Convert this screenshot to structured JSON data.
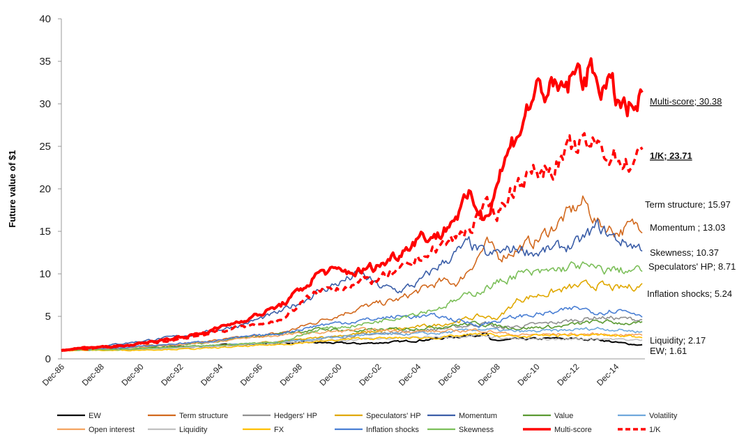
{
  "chart_data": {
    "type": "line",
    "title": "",
    "xlabel": "",
    "ylabel": "Future value of $1",
    "ylim": [
      0,
      40
    ],
    "yticks": [
      0,
      5,
      10,
      15,
      20,
      25,
      30,
      35,
      40
    ],
    "xlim": [
      1986.92,
      2016.3
    ],
    "xtick_labels": [
      "Dec-86",
      "Dec-88",
      "Dec-90",
      "Dec-92",
      "Dec-94",
      "Dec-96",
      "Dec-98",
      "Dec-00",
      "Dec-02",
      "Dec-04",
      "Dec-06",
      "Dec-08",
      "Dec-10",
      "Dec-12",
      "Dec-14"
    ],
    "grid": false,
    "legend_position": "bottom",
    "series": [
      {
        "name": "EW",
        "color": "#000000",
        "width": 2,
        "x": [
          1986.92,
          1990,
          1994,
          1998,
          2000,
          2002,
          2004,
          2006,
          2008.4,
          2008.6,
          2010,
          2012,
          2014,
          2015,
          2016.3
        ],
        "y": [
          1,
          1.2,
          1.5,
          1.9,
          1.9,
          1.8,
          2.0,
          2.4,
          3.0,
          2.1,
          2.3,
          2.4,
          2.3,
          1.9,
          1.61
        ]
      },
      {
        "name": "Term structure",
        "color": "#d2691e",
        "width": 1.6,
        "x": [
          1986.92,
          1990,
          1994,
          1998,
          2000,
          2002,
          2004,
          2006,
          2007,
          2008.4,
          2009,
          2010,
          2011,
          2012,
          2013.3,
          2014,
          2015,
          2016.3
        ],
        "y": [
          1,
          1.3,
          2,
          3,
          4.5,
          6,
          7,
          9,
          9,
          13.5,
          12,
          13,
          14,
          16,
          18.5,
          16,
          15,
          15.97
        ]
      },
      {
        "name": "Hedgers' HP",
        "color": "#909090",
        "width": 1.6,
        "x": [
          1986.92,
          1990,
          1994,
          1998,
          2002,
          2006,
          2008.4,
          2009,
          2012,
          2014,
          2016.3
        ],
        "y": [
          1,
          1.1,
          1.4,
          2,
          2.8,
          3.5,
          4.2,
          3.6,
          4.3,
          4.9,
          4.6
        ]
      },
      {
        "name": "Speculators' HP",
        "color": "#e0a800",
        "width": 1.6,
        "x": [
          1986.92,
          1990,
          1994,
          1998,
          2002,
          2006,
          2008,
          2009,
          2010,
          2012,
          2013,
          2014,
          2015,
          2016.3
        ],
        "y": [
          1,
          1.1,
          1.5,
          2,
          3,
          4,
          5,
          4.8,
          7,
          8,
          8.5,
          8.7,
          8.2,
          8.71
        ]
      },
      {
        "name": "Momentum",
        "color": "#3b5ea8",
        "width": 1.6,
        "x": [
          1986.92,
          1990,
          1994,
          1996,
          1998,
          2000,
          2001,
          2002,
          2003,
          2004,
          2005,
          2006,
          2007.5,
          2008.5,
          2009,
          2010,
          2011,
          2012,
          2013,
          2014,
          2015,
          2016.3
        ],
        "y": [
          1,
          1.8,
          3,
          4,
          5.5,
          8,
          9,
          10,
          8.5,
          8,
          9,
          11,
          13.5,
          12,
          12.5,
          13,
          12.5,
          13,
          13.5,
          15.5,
          14,
          13.03
        ]
      },
      {
        "name": "Value",
        "color": "#5a9a32",
        "width": 1.6,
        "x": [
          1986.92,
          1990,
          1994,
          1998,
          2000,
          2002,
          2004,
          2006,
          2008,
          2010,
          2012,
          2014,
          2016.3
        ],
        "y": [
          1,
          1.2,
          1.8,
          3,
          3.5,
          3.3,
          3.5,
          3.8,
          4.2,
          3.6,
          3.8,
          4.4,
          4.1
        ]
      },
      {
        "name": "Volatility",
        "color": "#6fa8dc",
        "width": 1.6,
        "x": [
          1986.92,
          1990,
          1994,
          1998,
          2002,
          2006,
          2008,
          2010,
          2012,
          2014,
          2016.3
        ],
        "y": [
          1,
          1.1,
          1.5,
          2,
          2.8,
          3,
          3.5,
          3.2,
          3.3,
          3.6,
          3.2
        ]
      },
      {
        "name": "Open interest",
        "color": "#f4a460",
        "width": 1.6,
        "x": [
          1986.92,
          1990,
          1994,
          1998,
          2002,
          2006,
          2008,
          2010,
          2012,
          2014,
          2016.3
        ],
        "y": [
          1,
          1.3,
          1.9,
          2.8,
          3.4,
          3.2,
          3.4,
          2.8,
          2.9,
          2.9,
          2.8
        ]
      },
      {
        "name": "Liquidity",
        "color": "#c0c0c0",
        "width": 1.6,
        "x": [
          1986.92,
          1990,
          1994,
          1998,
          2002,
          2006,
          2008,
          2010,
          2012,
          2014,
          2016.3
        ],
        "y": [
          1,
          1.1,
          1.4,
          1.9,
          2.3,
          2.6,
          2.8,
          2.3,
          2.3,
          2.4,
          2.17
        ]
      },
      {
        "name": "FX",
        "color": "#ffc000",
        "width": 1.6,
        "x": [
          1986.92,
          1990,
          1994,
          1998,
          2002,
          2006,
          2008,
          2010,
          2012,
          2014,
          2016.3
        ],
        "y": [
          1,
          1.0,
          1.2,
          1.7,
          2.4,
          2.5,
          2.9,
          2.6,
          2.8,
          2.8,
          2.6
        ]
      },
      {
        "name": "Inflation shocks",
        "color": "#4a7fd4",
        "width": 1.6,
        "x": [
          1986.92,
          1990,
          1994,
          1998,
          2000,
          2002,
          2004,
          2006,
          2008,
          2010,
          2012,
          2013,
          2014,
          2015,
          2016.3
        ],
        "y": [
          1,
          1.3,
          2,
          3,
          4,
          4.5,
          5,
          5,
          4,
          5,
          5.5,
          6,
          5.5,
          5.8,
          5.24
        ]
      },
      {
        "name": "Skewness",
        "color": "#7cbf5a",
        "width": 1.6,
        "x": [
          1986.92,
          1990,
          1994,
          1998,
          2000,
          2002,
          2004,
          2006,
          2008,
          2009,
          2010,
          2011,
          2012,
          2013,
          2014,
          2016.3
        ],
        "y": [
          1,
          1.1,
          1.5,
          2,
          3.5,
          4,
          5,
          6,
          8,
          9,
          10,
          10,
          10.5,
          11,
          10.5,
          10.37
        ]
      },
      {
        "name": "Multi-score",
        "color": "#ff0000",
        "width": 4,
        "x": [
          1986.92,
          1988,
          1990,
          1992,
          1994,
          1996,
          1997,
          1998,
          1999,
          2000,
          2001,
          2002,
          2003,
          2004,
          2005,
          2006,
          2007.6,
          2008.3,
          2009,
          2010,
          2011,
          2012,
          2013,
          2013.8,
          2014.5,
          2015.5,
          2016.3
        ],
        "y": [
          1,
          1.3,
          1.5,
          2.2,
          3,
          4.5,
          5.3,
          6.3,
          8,
          10.3,
          10.2,
          10.3,
          11,
          12.5,
          14.5,
          14.5,
          19,
          16.5,
          21.5,
          27,
          32,
          31,
          33.5,
          33.5,
          32,
          29,
          30.38
        ]
      },
      {
        "name": "1/K",
        "color": "#ff0000",
        "width": 3.5,
        "dashed": true,
        "x": [
          1986.92,
          1990,
          1992,
          1994,
          1996,
          1998,
          1999,
          2000,
          2001,
          2002,
          2003,
          2004,
          2005,
          2006,
          2007.6,
          2008.3,
          2009,
          2010,
          2011,
          2012,
          2013,
          2014,
          2015.5,
          2016.3
        ],
        "y": [
          1,
          1.5,
          2,
          2.8,
          3.8,
          4.5,
          6.5,
          8,
          8.5,
          9,
          9.5,
          10.2,
          12,
          13,
          15.5,
          17.5,
          17.5,
          21,
          22,
          23,
          25,
          25,
          23,
          23.71
        ]
      }
    ],
    "end_labels": [
      {
        "text": "Multi-score; 30.38",
        "series": "Multi-score",
        "style": "red-underline"
      },
      {
        "text": "1/K; 23.71",
        "series": "1/K",
        "style": "red-bold-underline"
      },
      {
        "text": "Term structure; 15.97",
        "series": "Term structure"
      },
      {
        "text": "Momentum ; 13.03",
        "series": "Momentum"
      },
      {
        "text": "Skewness; 10.37",
        "series": "Skewness"
      },
      {
        "text": "Speculators' HP; 8.71",
        "series": "Speculators' HP"
      },
      {
        "text": "Inflation shocks; 5.24",
        "series": "Inflation shocks"
      },
      {
        "text": "Liquidity; 2.17",
        "series": "Liquidity"
      },
      {
        "text": "EW; 1.61",
        "series": "EW"
      }
    ]
  }
}
